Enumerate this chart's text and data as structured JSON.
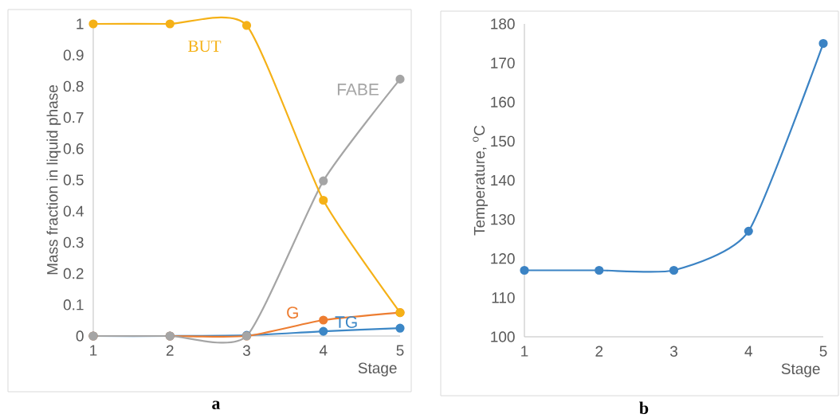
{
  "chart_data": [
    {
      "type": "line",
      "xlabel": "Stage",
      "ylabel": "Mass fraction in liquid phase",
      "categories": [
        "1",
        "2",
        "3",
        "4",
        "5"
      ],
      "series": [
        {
          "name": "BUT",
          "color": "#f5b117",
          "values": [
            1,
            1,
            0.995,
            0.435,
            0.075
          ]
        },
        {
          "name": "FABE",
          "color": "#a5a5a5",
          "values": [
            0,
            0,
            0,
            0.497,
            0.823
          ]
        },
        {
          "name": "G",
          "color": "#ed7d31",
          "values": [
            0,
            0,
            0,
            0.051,
            0.075
          ]
        },
        {
          "name": "TG",
          "color": "#3c87c6",
          "values": [
            0,
            0,
            0.002,
            0.015,
            0.025
          ]
        }
      ],
      "ylim": [
        0,
        1
      ],
      "yticks": [
        0,
        0.1,
        0.2,
        0.3,
        0.4,
        0.5,
        0.6,
        0.7,
        0.8,
        0.9,
        1
      ],
      "marker": "circle",
      "line_style": "solid",
      "grid": false,
      "annotations": [
        "a"
      ]
    },
    {
      "type": "line",
      "xlabel": "Stage",
      "ylabel": "Temperature, $^{o}$C",
      "categories": [
        "1",
        "2",
        "3",
        "4",
        "5"
      ],
      "values": [
        117,
        117,
        117,
        127,
        175
      ],
      "color": "#3b83c4",
      "ylim": [
        100,
        180
      ],
      "yticks": [
        100,
        110,
        120,
        130,
        140,
        150,
        160,
        170,
        180
      ],
      "marker": "circle",
      "line_style": "solid",
      "grid": false,
      "annotations": [
        "b"
      ]
    }
  ]
}
